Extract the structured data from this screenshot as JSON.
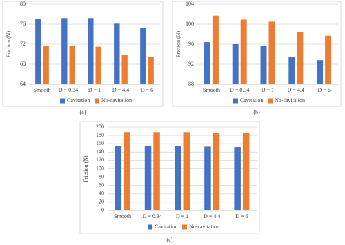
{
  "chart_data": [
    {
      "type": "bar",
      "caption": "(a)",
      "y_label": "Friction (N)",
      "categories": [
        "Smooth",
        "D = 0.34",
        "D = 1",
        "D = 4.4",
        "D = 6"
      ],
      "series": [
        {
          "name": "Cavitation",
          "color": "#4472c4",
          "values": [
            77.1,
            77.2,
            77.2,
            76.1,
            75.3
          ]
        },
        {
          "name": "No-cavitation",
          "color": "#ed7d31",
          "values": [
            71.7,
            71.6,
            71.5,
            69.9,
            69.4
          ]
        }
      ],
      "ylim": [
        64,
        80
      ],
      "yticks": [
        64,
        68,
        72,
        76,
        80
      ],
      "grid": true,
      "legend": "bottom"
    },
    {
      "type": "bar",
      "caption": "(b)",
      "y_label": "Friction (N)",
      "categories": [
        "Smooth",
        "D = 0.34",
        "D = 1",
        "D = 4.4",
        "D = 6"
      ],
      "series": [
        {
          "name": "Cavitation",
          "color": "#4472c4",
          "values": [
            96.4,
            96.0,
            95.6,
            93.5,
            92.8
          ]
        },
        {
          "name": "No-cavitation",
          "color": "#ed7d31",
          "values": [
            101.7,
            100.9,
            100.5,
            98.4,
            97.7
          ]
        }
      ],
      "ylim": [
        88,
        104
      ],
      "yticks": [
        88,
        92,
        96,
        100,
        104
      ],
      "grid": true,
      "legend": "bottom"
    },
    {
      "type": "bar",
      "caption": "(c)",
      "y_label": "Friction (N)",
      "categories": [
        "Smooth",
        "D = 0.34",
        "D = 1",
        "D = 4.4",
        "D = 6"
      ],
      "series": [
        {
          "name": "Cavitation",
          "color": "#4472c4",
          "values": [
            154,
            155,
            155,
            153,
            152
          ]
        },
        {
          "name": "No-cavitation",
          "color": "#ed7d31",
          "values": [
            188,
            188,
            188,
            186,
            186
          ]
        }
      ],
      "ylim": [
        0,
        200
      ],
      "yticks": [
        0,
        20,
        40,
        60,
        80,
        100,
        120,
        140,
        160,
        180,
        200
      ],
      "grid": true,
      "legend": "bottom"
    }
  ]
}
